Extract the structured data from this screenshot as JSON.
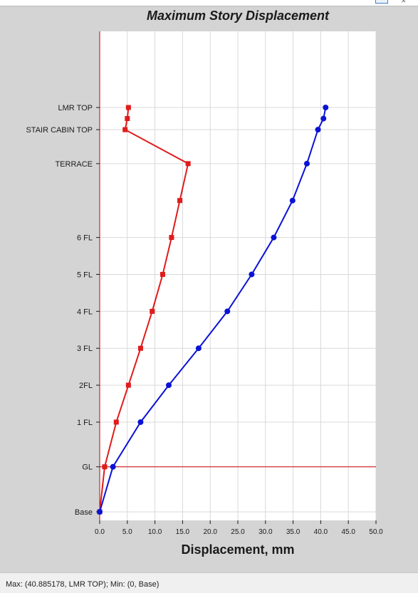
{
  "status": {
    "text": "Max: (40.885178, LMR TOP);   Min: (0, Base)"
  },
  "chart_data": {
    "type": "line",
    "title": "Maximum Story Displacement",
    "xlabel": "Displacement, mm",
    "ylabel": "",
    "xlim": [
      0,
      50
    ],
    "x_ticks": [
      "0.0",
      "5.0",
      "10.0",
      "15.0",
      "20.0",
      "25.0",
      "30.0",
      "35.0",
      "40.0",
      "45.0",
      "50.0"
    ],
    "x_tick_values": [
      0,
      5,
      10,
      15,
      20,
      25,
      30,
      35,
      40,
      45,
      50
    ],
    "y_levels": [
      "Base",
      "GL",
      "1 FL",
      "2FL",
      "3 FL",
      "4 FL",
      "5 FL",
      "6 FL",
      "",
      "TERRACE",
      "STAIR CABIN TOP",
      "",
      "LMR TOP"
    ],
    "y_level_values": [
      0.0,
      1.22,
      2.43,
      3.43,
      4.43,
      5.43,
      6.43,
      7.43,
      8.43,
      9.43,
      10.35,
      10.65,
      10.95
    ],
    "y_labels_shown": [
      "Base",
      "GL",
      "1 FL",
      "2FL",
      "3 FL",
      "4 FL",
      "5 FL",
      "6 FL",
      "TERRACE",
      "STAIR CABIN TOP",
      "LMR TOP"
    ],
    "y_labels_shown_values": [
      0.0,
      1.22,
      2.43,
      3.43,
      4.43,
      5.43,
      6.43,
      7.43,
      9.43,
      10.35,
      10.95
    ],
    "grid": true,
    "reference_line": {
      "level": "GL",
      "color": "#cc0000"
    },
    "colors": {
      "series_red": "#e01b1b",
      "series_blue": "#0a12d6",
      "axis_red": "#cc0000"
    },
    "series": [
      {
        "color": "#e01b1b",
        "marker": "square",
        "x": [
          0.0,
          0.9,
          3.0,
          5.2,
          7.4,
          9.5,
          11.4,
          13.0,
          14.5,
          16.0,
          4.6,
          5.0,
          5.2
        ],
        "y": [
          0.0,
          1.22,
          2.43,
          3.43,
          4.43,
          5.43,
          6.43,
          7.43,
          8.43,
          9.43,
          10.35,
          10.65,
          10.95
        ]
      },
      {
        "color": "#0a12d6",
        "marker": "circle",
        "x": [
          0.0,
          2.4,
          7.4,
          12.5,
          17.9,
          23.1,
          27.5,
          31.5,
          34.9,
          37.5,
          39.5,
          40.5,
          40.885178
        ],
        "y": [
          0.0,
          1.22,
          2.43,
          3.43,
          4.43,
          5.43,
          6.43,
          7.43,
          8.43,
          9.43,
          10.35,
          10.65,
          10.95
        ]
      }
    ]
  }
}
